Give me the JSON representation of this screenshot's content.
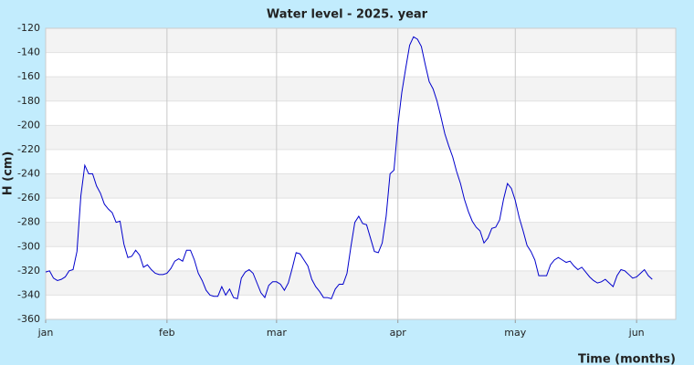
{
  "chart_data": {
    "type": "line",
    "title": "Water level - 2025. year",
    "x_label": "Time (months)",
    "y_label": "H (cm)",
    "xlim": [
      0,
      161
    ],
    "ylim": [
      -360,
      -120
    ],
    "xticks": [
      {
        "value": 0,
        "label": "jan"
      },
      {
        "value": 31,
        "label": "feb"
      },
      {
        "value": 59,
        "label": "mar"
      },
      {
        "value": 90,
        "label": "apr"
      },
      {
        "value": 120,
        "label": "may"
      },
      {
        "value": 151,
        "label": "jun"
      }
    ],
    "yticks": [
      -360,
      -340,
      -320,
      -300,
      -280,
      -260,
      -240,
      -220,
      -200,
      -180,
      -160,
      -140,
      -120
    ],
    "grid": true,
    "x": [
      0,
      1,
      2,
      3,
      4,
      5,
      6,
      7,
      8,
      9,
      10,
      11,
      12,
      13,
      14,
      15,
      16,
      17,
      18,
      19,
      20,
      21,
      22,
      23,
      24,
      25,
      26,
      27,
      28,
      29,
      30,
      31,
      32,
      33,
      34,
      35,
      36,
      37,
      38,
      39,
      40,
      41,
      42,
      43,
      44,
      45,
      46,
      47,
      48,
      49,
      50,
      51,
      52,
      53,
      54,
      55,
      56,
      57,
      58,
      59,
      60,
      61,
      62,
      63,
      64,
      65,
      66,
      67,
      68,
      69,
      70,
      71,
      72,
      73,
      74,
      75,
      76,
      77,
      78,
      79,
      80,
      81,
      82,
      83,
      84,
      85,
      86,
      87,
      88,
      89,
      90,
      91,
      92,
      93,
      94,
      95,
      96,
      97,
      98,
      99,
      100,
      101,
      102,
      103,
      104,
      105,
      106,
      107,
      108,
      109,
      110,
      111,
      112,
      113,
      114,
      115,
      116,
      117,
      118,
      119,
      120,
      121,
      122,
      123,
      124,
      125,
      126,
      127,
      128,
      129,
      130,
      131,
      132,
      133,
      134,
      135,
      136,
      137,
      138,
      139,
      140,
      141,
      142,
      143,
      144,
      145,
      146,
      147,
      148,
      149,
      150,
      151,
      152,
      153,
      154,
      155
    ],
    "series": [
      {
        "name": "H",
        "color": "#0000cc",
        "values": [
          -321,
          -320,
          -326,
          -328,
          -327,
          -325,
          -320,
          -319,
          -304,
          -258,
          -233,
          -240,
          -240,
          -250,
          -256,
          -265,
          -269,
          -272,
          -280,
          -279,
          -298,
          -309,
          -308,
          -303,
          -307,
          -317,
          -315,
          -319,
          -322,
          -323,
          -323,
          -322,
          -318,
          -312,
          -310,
          -312,
          -303,
          -303,
          -311,
          -322,
          -328,
          -336,
          -340,
          -341,
          -341,
          -333,
          -340,
          -335,
          -342,
          -343,
          -326,
          -321,
          -319,
          -322,
          -330,
          -338,
          -342,
          -332,
          -329,
          -329,
          -331,
          -336,
          -330,
          -318,
          -305,
          -306,
          -311,
          -316,
          -327,
          -333,
          -337,
          -342,
          -342,
          -343,
          -335,
          -331,
          -331,
          -322,
          -300,
          -280,
          -275,
          -281,
          -282,
          -293,
          -304,
          -305,
          -297,
          -275,
          -240,
          -237,
          -200,
          -173,
          -153,
          -134,
          -127,
          -129,
          -135,
          -150,
          -164,
          -170,
          -180,
          -193,
          -207,
          -217,
          -226,
          -238,
          -248,
          -261,
          -271,
          -279,
          -284,
          -287,
          -297,
          -293,
          -285,
          -284,
          -278,
          -261,
          -248,
          -252,
          -262,
          -276,
          -287,
          -299,
          -304,
          -311,
          -324,
          -324,
          -324,
          -315,
          -311,
          -309,
          -311,
          -313,
          -312,
          -316,
          -319,
          -317,
          -321,
          -325,
          -328,
          -330,
          -329,
          -327,
          -330,
          -333,
          -324,
          -319,
          -320,
          -323,
          -326,
          -325,
          -322,
          -319,
          -324,
          -327
        ]
      }
    ]
  }
}
